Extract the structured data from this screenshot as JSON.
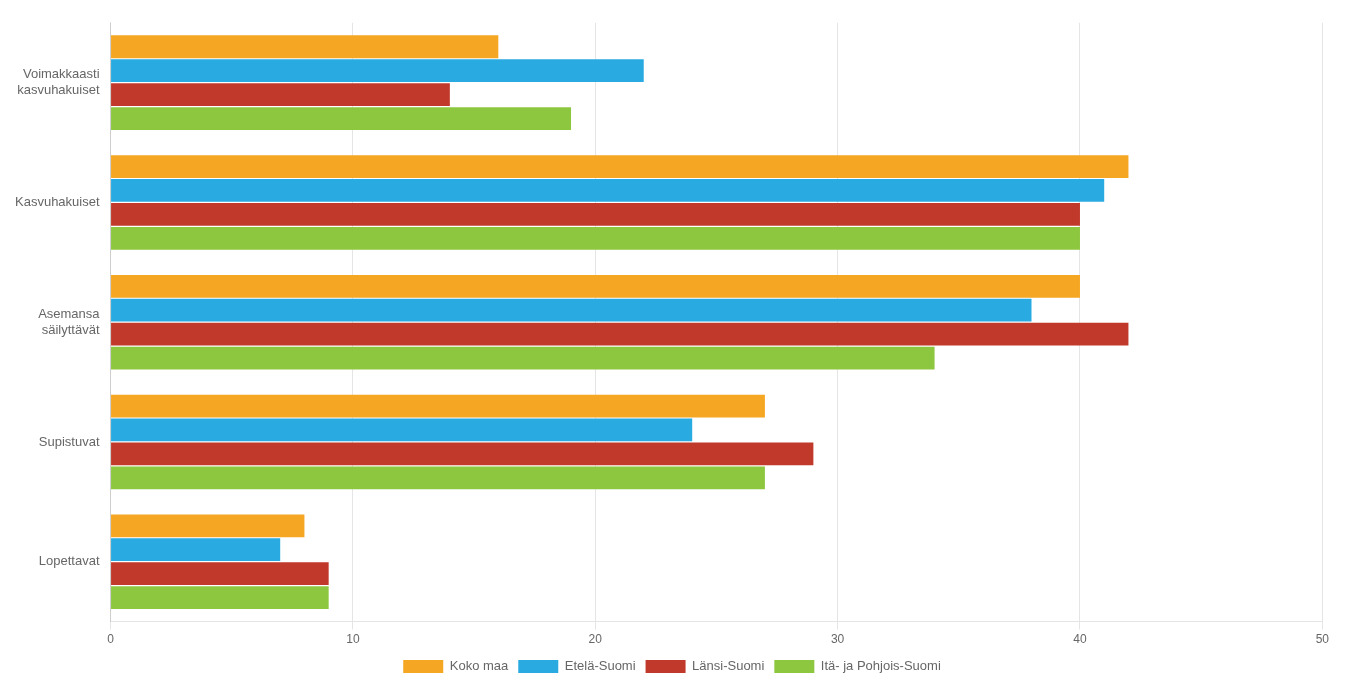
{
  "chart_data": {
    "type": "bar",
    "orientation": "horizontal",
    "categories": [
      "Voimakkaasti\nkasvuhakuiset",
      "Kasvuhakuiset",
      "Asemansa\nsäilyttävät",
      "Supistuvat",
      "Lopettavat"
    ],
    "series": [
      {
        "name": "Koko maa",
        "color": "#F5A623",
        "values": [
          16,
          42,
          40,
          27,
          8
        ]
      },
      {
        "name": "Etelä-Suomi",
        "color": "#29ABE2",
        "values": [
          22,
          41,
          38,
          24,
          7
        ]
      },
      {
        "name": "Länsi-Suomi",
        "color": "#C0392B",
        "values": [
          14,
          40,
          42,
          29,
          9
        ]
      },
      {
        "name": "Itä- ja Pohjois-Suomi",
        "color": "#8DC63F",
        "values": [
          19,
          40,
          34,
          27,
          9
        ]
      }
    ],
    "xlim": [
      0,
      50
    ],
    "xticks": [
      0,
      10,
      20,
      30,
      40,
      50
    ],
    "grid": true,
    "legend": "bottom"
  }
}
